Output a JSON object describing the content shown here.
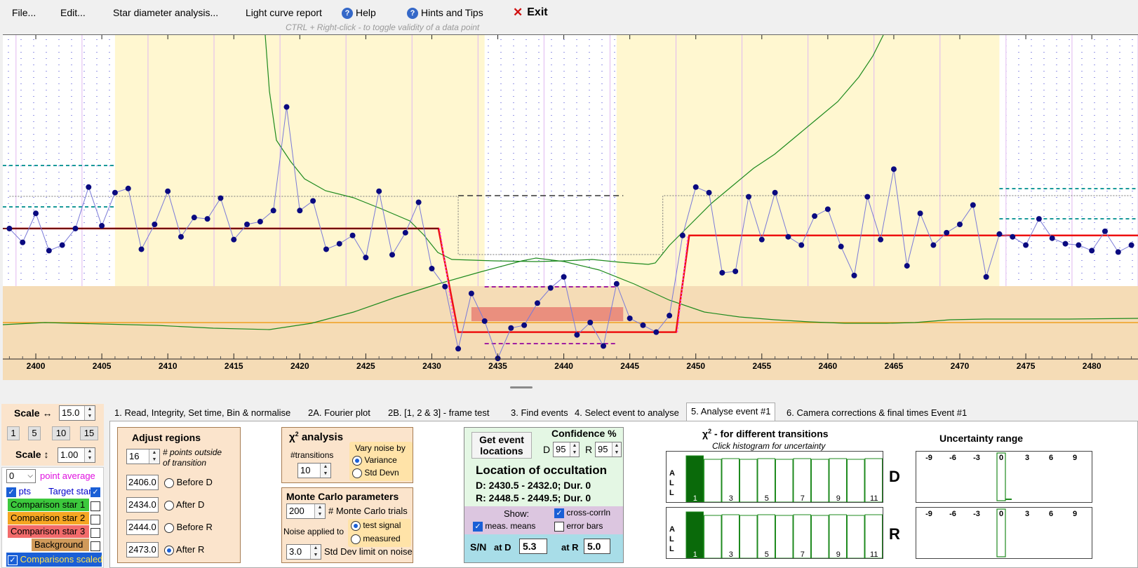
{
  "menu": {
    "file": "File...",
    "edit": "Edit...",
    "star_diameter": "Star diameter analysis...",
    "light_curve": "Light curve report",
    "help": "Help",
    "hints": "Hints and Tips",
    "exit": "Exit"
  },
  "hint": "CTRL + Right-click   -   to toggle validity of a data point",
  "colors": {
    "plot_yellow": "#fff7d0",
    "plot_band": "#f5dcb6",
    "fit_line": "#ee1111",
    "points": "#0a0a80",
    "green_line": "#1e8a1e"
  },
  "chart_data": {
    "type": "line",
    "xlim": [
      2397.5,
      2483.5
    ],
    "xticks": [
      2400,
      2405,
      2410,
      2415,
      2420,
      2425,
      2430,
      2435,
      2440,
      2445,
      2450,
      2455,
      2460,
      2465,
      2470,
      2475,
      2480
    ],
    "series": [
      {
        "name": "Target star",
        "x": [
          2398,
          2399,
          2400,
          2401,
          2402,
          2403,
          2404,
          2405,
          2406,
          2407,
          2408,
          2409,
          2410,
          2411,
          2412,
          2413,
          2414,
          2415,
          2416,
          2417,
          2418,
          2419,
          2420,
          2421,
          2422,
          2423,
          2424,
          2425,
          2426,
          2427,
          2428,
          2429,
          2430,
          2431,
          2432,
          2433,
          2434,
          2435,
          2436,
          2437,
          2438,
          2439,
          2440,
          2441,
          2442,
          2443,
          2444,
          2445,
          2446,
          2447,
          2448,
          2449,
          2450,
          2451,
          2452,
          2453,
          2454,
          2455,
          2456,
          2457,
          2458,
          2459,
          2460,
          2461,
          2462,
          2463,
          2464,
          2465,
          2466,
          2467,
          2468,
          2469,
          2470,
          2471,
          2472,
          2473,
          2474,
          2475,
          2476,
          2477,
          2478,
          2479,
          2480,
          2481,
          2482,
          2483
        ],
        "y": [
          0.97,
          0.87,
          1.08,
          0.81,
          0.85,
          0.97,
          1.27,
          0.99,
          1.23,
          1.26,
          0.82,
          1.0,
          1.24,
          0.91,
          1.05,
          1.04,
          1.19,
          0.89,
          1.0,
          1.02,
          1.1,
          1.85,
          1.1,
          1.17,
          0.82,
          0.86,
          0.92,
          0.76,
          1.24,
          0.78,
          0.94,
          1.16,
          0.68,
          0.55,
          0.1,
          0.5,
          0.3,
          0.03,
          0.25,
          0.27,
          0.43,
          0.54,
          0.62,
          0.2,
          0.29,
          0.12,
          0.57,
          0.32,
          0.27,
          0.22,
          0.34,
          0.92,
          1.27,
          1.23,
          0.65,
          0.66,
          1.2,
          0.89,
          1.23,
          0.91,
          0.85,
          1.06,
          1.11,
          0.84,
          0.63,
          1.2,
          0.89,
          1.4,
          0.7,
          1.08,
          0.85,
          0.94,
          1.0,
          1.14,
          0.62,
          0.93,
          0.91,
          0.85,
          1.04,
          0.9,
          0.86,
          0.85,
          0.81,
          0.95,
          0.8,
          0.85
        ]
      },
      {
        "name": "Model fit",
        "x": [
          2398,
          2430.5,
          2432.0,
          2448.5,
          2449.5,
          2483.5
        ],
        "y": [
          0.97,
          0.97,
          0.22,
          0.22,
          0.92,
          0.92
        ]
      }
    ],
    "vertical_region_limits": [
      2406.0,
      2434.0,
      2444.0,
      2473.0
    ]
  },
  "left": {
    "scale_h_label": "Scale ↔",
    "scale_h_val": "15.0",
    "presets": [
      "1",
      "5",
      "10",
      "15"
    ],
    "scale_v_label": "Scale ↕",
    "scale_v_val": "1.00",
    "avg_val": "0",
    "avg_label": "point average",
    "pts_label": "pts",
    "target_label": "Target star",
    "comp1": "Comparison star 1",
    "comp2": "Comparison star 2",
    "comp3": "Comparison star 3",
    "background": "Background",
    "scaled": "Comparisons scaled"
  },
  "tabs": [
    "1.  Read, Integrity, Set time, Bin & normalise",
    "2A. Fourier plot",
    "2B. [1, 2 & 3] - frame test",
    "3. Find events",
    "4. Select event to analyse",
    "5. Analyse event #1",
    "6. Camera corrections & final times Event #1"
  ],
  "adjust": {
    "title": "Adjust regions",
    "points_val": "16",
    "points_label1": "# points outside",
    "points_label2": "of transition",
    "rows": [
      {
        "val": "2406.0",
        "label": "Before D"
      },
      {
        "val": "2434.0",
        "label": "After D"
      },
      {
        "val": "2444.0",
        "label": "Before R"
      },
      {
        "val": "2473.0",
        "label": "After R"
      }
    ]
  },
  "chi": {
    "title_pre": "χ",
    "title_sup": "2",
    "title_post": " analysis",
    "transitions_label": "#transitions",
    "transitions_val": "10",
    "vary_label": "Vary noise by",
    "variance": "Variance",
    "stddev": "Std Devn"
  },
  "mc": {
    "title": "Monte Carlo parameters",
    "trials_val": "200",
    "trials_label": "# Monte Carlo trials",
    "noise_label": "Noise applied to",
    "test_signal": "test signal",
    "measured": "measured",
    "limit_val": "3.0",
    "limit_label": "Std Dev limit on noise"
  },
  "event": {
    "get_btn1": "Get event",
    "get_btn2": "locations",
    "conf_label": "Confidence %",
    "d_label": "D",
    "d_val": "95",
    "r_label": "R",
    "r_val": "95",
    "loc_title": "Location of occultation",
    "d_line": "D: 2430.5 - 2432.0; Dur. 0",
    "r_line": "R: 2448.5 - 2449.5; Dur. 0",
    "show_label": "Show:",
    "cross": "cross-corrln",
    "means": "meas. means",
    "errbars": "error bars",
    "sn_label": "S/N",
    "at_d": "at D",
    "sn_d": "5.3",
    "at_r": "at R",
    "sn_r": "5.0"
  },
  "chi_hist": {
    "title_pre": "χ",
    "title_sup": "2",
    "title_post": " -  for different transitions",
    "subtitle": "Click histogram for uncertainty",
    "all_label": "A\nL\nL",
    "d_label": "D",
    "r_label": "R",
    "xlabels": [
      "1",
      "3",
      "5",
      "7",
      "9",
      "11"
    ]
  },
  "uncert": {
    "title": "Uncertainty range",
    "ticks": [
      "-9",
      "-6",
      "-3",
      "0",
      "3",
      "6",
      "9"
    ]
  }
}
